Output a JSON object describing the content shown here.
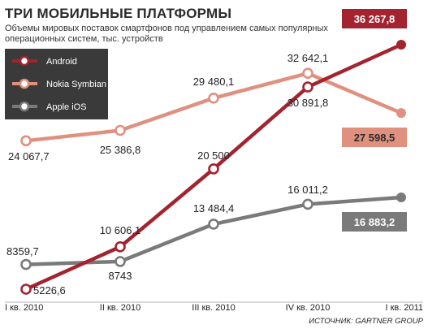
{
  "chart_data": {
    "type": "line",
    "title": "ТРИ МОБИЛЬНЫЕ ПЛАТФОРМЫ",
    "subtitle_lines": [
      "Объемы мировых поставок смартфонов под управлением самых популярных",
      "операционных систем, тыс. устройств"
    ],
    "categories": [
      "I кв. 2010",
      "II кв. 2010",
      "III кв. 2010",
      "IV кв. 2010",
      "I кв. 2011"
    ],
    "series": [
      {
        "name": "Android",
        "color": "#a3232f",
        "values": [
          5226.6,
          10606.1,
          20500,
          30891.8,
          36267.8
        ],
        "labels": [
          "5226,6",
          "10 606,1",
          "20 500",
          "30 891,8",
          "36 267,8"
        ]
      },
      {
        "name": "Nokia Symbian",
        "color": "#e0907f",
        "values": [
          24067.7,
          25386.8,
          29480.1,
          32642.1,
          27598.5
        ],
        "labels": [
          "24 067,7",
          "25 386,8",
          "29 480,1",
          "32 642,1",
          "27 598,5"
        ]
      },
      {
        "name": "Apple iOS",
        "color": "#7a7a7a",
        "values": [
          8359.7,
          8743,
          13484.4,
          16011.2,
          16883.2
        ],
        "labels": [
          "8359,7",
          "8743",
          "13 484,4",
          "16 011,2",
          "16 883,2"
        ]
      }
    ],
    "legend_position": "top-left",
    "grid": false,
    "source": "ИСТОЧНИК: GARTNER GROUP"
  }
}
